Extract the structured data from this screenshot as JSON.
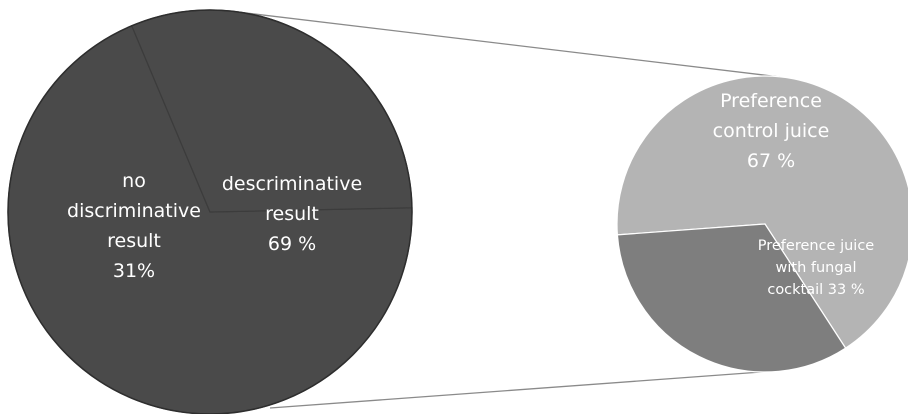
{
  "chart_data": [
    {
      "type": "pie",
      "slices": [
        {
          "name": "descriminative result",
          "value": 69,
          "label_lines": [
            "descriminative",
            "result",
            "69 %"
          ],
          "color": "#4a4a4a"
        },
        {
          "name": "no discriminative result",
          "value": 31,
          "label_lines": [
            "no",
            "discriminative",
            "result",
            "31%"
          ],
          "color": "#4a4a4a"
        }
      ]
    },
    {
      "type": "pie",
      "slices": [
        {
          "name": "Preference control juice",
          "value": 67,
          "label_lines": [
            "Preference",
            "control juice",
            "67 %"
          ],
          "color": "#b4b4b4"
        },
        {
          "name": "Preference juice with fungal cocktail",
          "value": 33,
          "label_lines": [
            "Preference juice",
            "with fungal",
            "cocktail 33 %"
          ],
          "color": "#7e7e7e"
        }
      ]
    }
  ]
}
